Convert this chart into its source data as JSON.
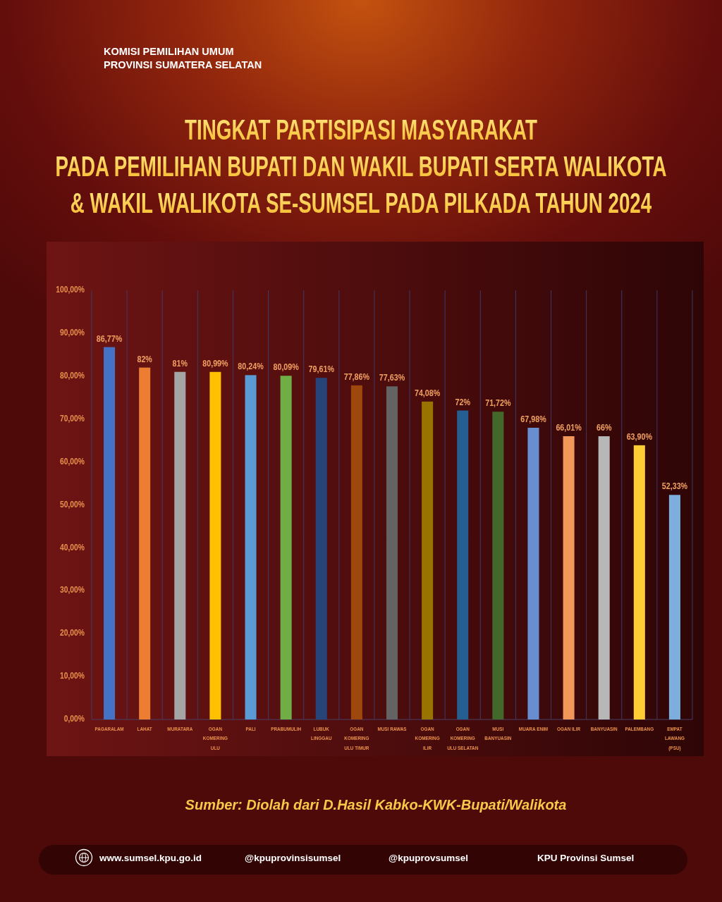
{
  "chart_data": {
    "type": "bar",
    "title": "TINGKAT PARTISIPASI MASYARAKAT\nPADA PEMILIHAN BUPATI DAN WAKIL BUPATI SERTA WALIKOTA\n& WAKIL WALIKOTA SE-SUMSEL PADA PILKADA TAHUN 2024",
    "categories": [
      "PAGARALAM",
      "LAHAT",
      "MURATARA",
      "OGAN KOMERING ULU",
      "PALI",
      "PRABUMULIH",
      "LUBUK LINGGAU",
      "OGAN KOMERING ULU TIMUR",
      "MUSI RAWAS",
      "OGAN KOMERING ILIR",
      "OGAN KOMERING ULU SELATAN",
      "MUSI BANYUASIN",
      "MUARA ENIM",
      "OGAN ILIR",
      "BANYUASIN",
      "PALEMBANG",
      "EMPAT LAWANG (PSU)"
    ],
    "values": [
      86.77,
      82,
      81,
      80.99,
      80.24,
      80.09,
      79.61,
      77.86,
      77.63,
      74.08,
      72,
      71.72,
      67.98,
      66.01,
      66,
      63.9,
      52.33
    ],
    "value_labels": [
      "86,77%",
      "82%",
      "81%",
      "80,99%",
      "80,24%",
      "80,09%",
      "79,61%",
      "77,86%",
      "77,63%",
      "74,08%",
      "72%",
      "71,72%",
      "67,98%",
      "66,01%",
      "66%",
      "63,90%",
      "52,33%"
    ],
    "colors": [
      "#4472c4",
      "#ed7d31",
      "#a5a5a5",
      "#ffc000",
      "#5b9bd5",
      "#70ad47",
      "#264478",
      "#9e480e",
      "#636363",
      "#997300",
      "#255e91",
      "#43682b",
      "#698ed0",
      "#f1975a",
      "#b7b7b7",
      "#ffcd33",
      "#7cafdd"
    ],
    "ylim": [
      0,
      100
    ],
    "yticks": [
      {
        "value": 0,
        "label": "0,00%"
      },
      {
        "value": 10,
        "label": "10,00%"
      },
      {
        "value": 20,
        "label": "20,00%"
      },
      {
        "value": 30,
        "label": "30,00%"
      },
      {
        "value": 40,
        "label": "40,00%"
      },
      {
        "value": 50,
        "label": "50,00%"
      },
      {
        "value": 60,
        "label": "60,00%"
      },
      {
        "value": 70,
        "label": "70,00%"
      },
      {
        "value": 80,
        "label": "80,00%"
      },
      {
        "value": 90,
        "label": "90,00%"
      },
      {
        "value": 100,
        "label": "100,00%"
      }
    ],
    "grid": "x",
    "annotations": [
      "KOMISI PEMILIHAN UMUM\nPROVINSI SUMATERA SELATAN",
      "Sumber: Diolah dari D.Hasil Kabko-KWK-Bupati/Walikota",
      "www.sumsel.kpu.go.id",
      "@kpuprovinsisumsel",
      "@kpuprovsumsel",
      "KPU Provinsi Sumsel"
    ]
  }
}
